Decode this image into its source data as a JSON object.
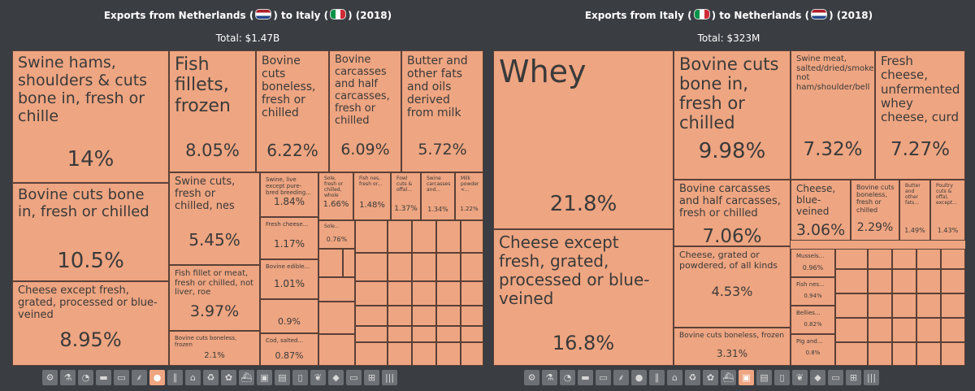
{
  "charts": [
    {
      "title_prefix": "Exports from Netherlands",
      "title_mid": "to Italy",
      "title_year": "(2018)",
      "total": "Total: $1.47B",
      "active_icon": 6
    },
    {
      "title_prefix": "Exports from Italy",
      "title_mid": "to Netherlands",
      "title_year": "(2018)",
      "total": "Total: $323M",
      "active_icon": 12
    }
  ],
  "icons": [
    "gear",
    "flask",
    "gauge",
    "anvil",
    "shoe",
    "wheat",
    "apple",
    "road",
    "shirt",
    "recycle",
    "hide",
    "ship",
    "box",
    "document",
    "bottle",
    "leaf",
    "diamond",
    "car",
    "cart",
    "bars"
  ],
  "colors": {
    "tile": "#eea581",
    "border": "#5a4038",
    "bg": "#3a3d42",
    "icon": "#6d7075"
  },
  "chart_data": [
    {
      "type": "treemap",
      "title": "Exports from Netherlands to Italy (2018)",
      "total": "$1.47B",
      "items": [
        {
          "label": "Swine hams, shoulders & cuts bone in, fresh or chille",
          "pct": "14%"
        },
        {
          "label": "Bovine cuts bone in, fresh or chilled",
          "pct": "10.5%"
        },
        {
          "label": "Cheese except fresh, grated, processed or blue-veined",
          "pct": "8.95%"
        },
        {
          "label": "Fish fillets, frozen",
          "pct": "8.05%"
        },
        {
          "label": "Bovine cuts boneless, fresh or chilled",
          "pct": "6.22%"
        },
        {
          "label": "Bovine carcasses and half carcasses, fresh or chilled",
          "pct": "6.09%"
        },
        {
          "label": "Butter and other fats and oils derived from milk",
          "pct": "5.72%"
        },
        {
          "label": "Swine cuts, fresh or chilled, nes",
          "pct": "5.45%"
        },
        {
          "label": "Fish fillet or meat, fresh or chilled, not liver, roe",
          "pct": "3.97%"
        },
        {
          "label": "Bovine cuts boneless, frozen",
          "pct": "2.1%"
        },
        {
          "label": "Swine, live except pure-bred breeding...",
          "pct": "1.84%"
        },
        {
          "label": "Sole, fresh or chilled, whole",
          "pct": "1.66%"
        },
        {
          "label": "Fish nes, fresh or...",
          "pct": "1.48%"
        },
        {
          "label": "Fowl cuts & offal...",
          "pct": "1.37%"
        },
        {
          "label": "Swine carcasses and...",
          "pct": "1.34%"
        },
        {
          "label": "Milk powder <...",
          "pct": "1.22%"
        },
        {
          "label": "Fresh cheese...",
          "pct": "1.17%"
        },
        {
          "label": "Bovine edible...",
          "pct": "1.01%"
        },
        {
          "label": "",
          "pct": "0.9%"
        },
        {
          "label": "Cod, salted...",
          "pct": "0.87%"
        },
        {
          "label": "Sole...",
          "pct": "0.76%"
        }
      ]
    },
    {
      "type": "treemap",
      "title": "Exports from Italy to Netherlands (2018)",
      "total": "$323M",
      "items": [
        {
          "label": "Whey",
          "pct": "21.8%"
        },
        {
          "label": "Cheese except fresh, grated, processed or blue-veined",
          "pct": "16.8%"
        },
        {
          "label": "Bovine cuts bone in, fresh or chilled",
          "pct": "9.98%"
        },
        {
          "label": "Swine meat, salted/dried/smoked not ham/shoulder/bell",
          "pct": "7.32%"
        },
        {
          "label": "Fresh cheese, unfermented whey cheese, curd",
          "pct": "7.27%"
        },
        {
          "label": "Bovine carcasses and half carcasses, fresh or chilled",
          "pct": "7.06%"
        },
        {
          "label": "Cheese, grated or powdered, of all kinds",
          "pct": "4.53%"
        },
        {
          "label": "Bovine cuts boneless, frozen",
          "pct": "3.31%"
        },
        {
          "label": "Cheese, blue-veined",
          "pct": "3.06%"
        },
        {
          "label": "Bovine cuts boneless, fresh or chilled",
          "pct": "2.29%"
        },
        {
          "label": "Butter and other fats...",
          "pct": "1.49%"
        },
        {
          "label": "Poultry cuts & offal, except...",
          "pct": "1.43%"
        },
        {
          "label": "Mussels...",
          "pct": "0.96%"
        },
        {
          "label": "Fish nes...",
          "pct": "0.94%"
        },
        {
          "label": "Bellies...",
          "pct": "0.82%"
        },
        {
          "label": "Pig and...",
          "pct": "0.8%"
        }
      ]
    }
  ]
}
